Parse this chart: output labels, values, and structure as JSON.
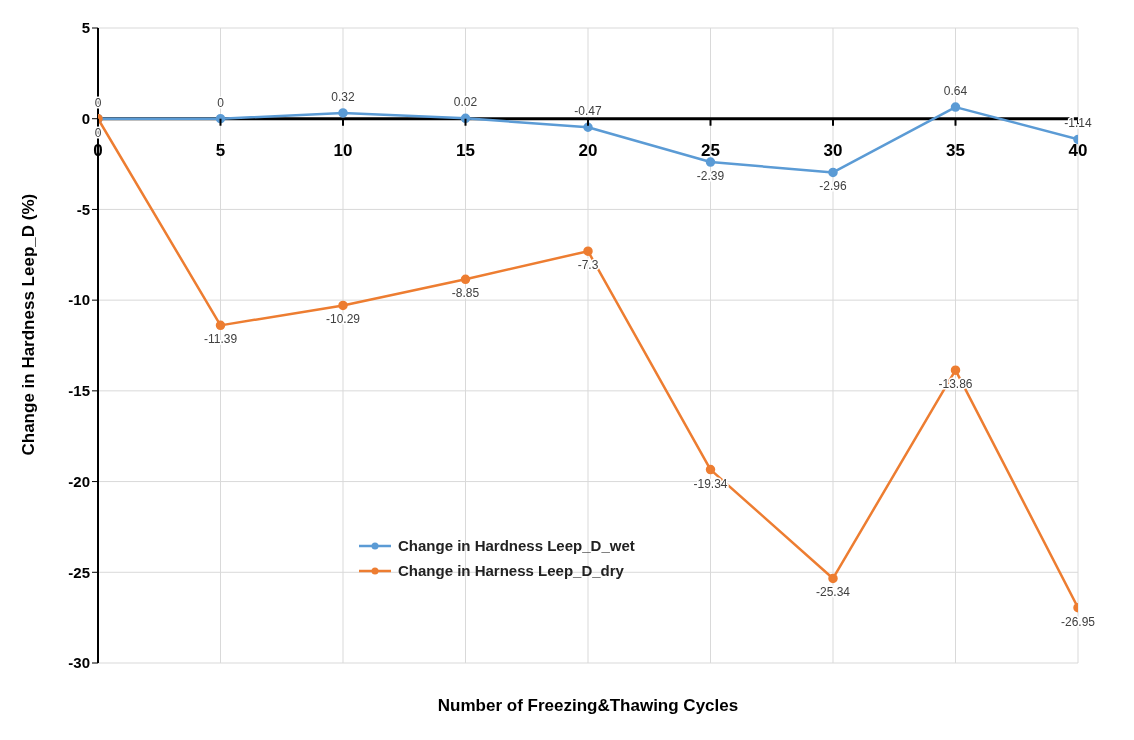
{
  "chart_data": {
    "type": "line",
    "xlabel": "Number of Freezing&Thawing Cycles",
    "ylabel": "Change in Hardness Leep_D  (%)",
    "x": [
      0,
      5,
      10,
      15,
      20,
      25,
      30,
      35,
      40
    ],
    "series": [
      {
        "name": "Change in Hardness Leep_D_wet",
        "color": "#5b9bd5",
        "values": [
          0,
          0,
          0.32,
          0.02,
          -0.47,
          -2.39,
          -2.96,
          0.64,
          -1.14
        ]
      },
      {
        "name": "Change in Harness Leep_D_dry",
        "color": "#ed7d31",
        "values": [
          0,
          -11.39,
          -10.29,
          -8.85,
          -7.3,
          -19.34,
          -25.34,
          -13.86,
          -26.95
        ]
      }
    ],
    "xlim": [
      0,
      40
    ],
    "xticks": [
      0,
      5,
      10,
      15,
      20,
      25,
      30,
      35,
      40
    ],
    "ylim": [
      -30,
      5
    ],
    "yticks": [
      -30,
      -25,
      -20,
      -15,
      -10,
      -5,
      0,
      5
    ],
    "grid": true,
    "legend": "bottom",
    "marker": "circle",
    "line_style": "solid",
    "data_labels": true
  }
}
